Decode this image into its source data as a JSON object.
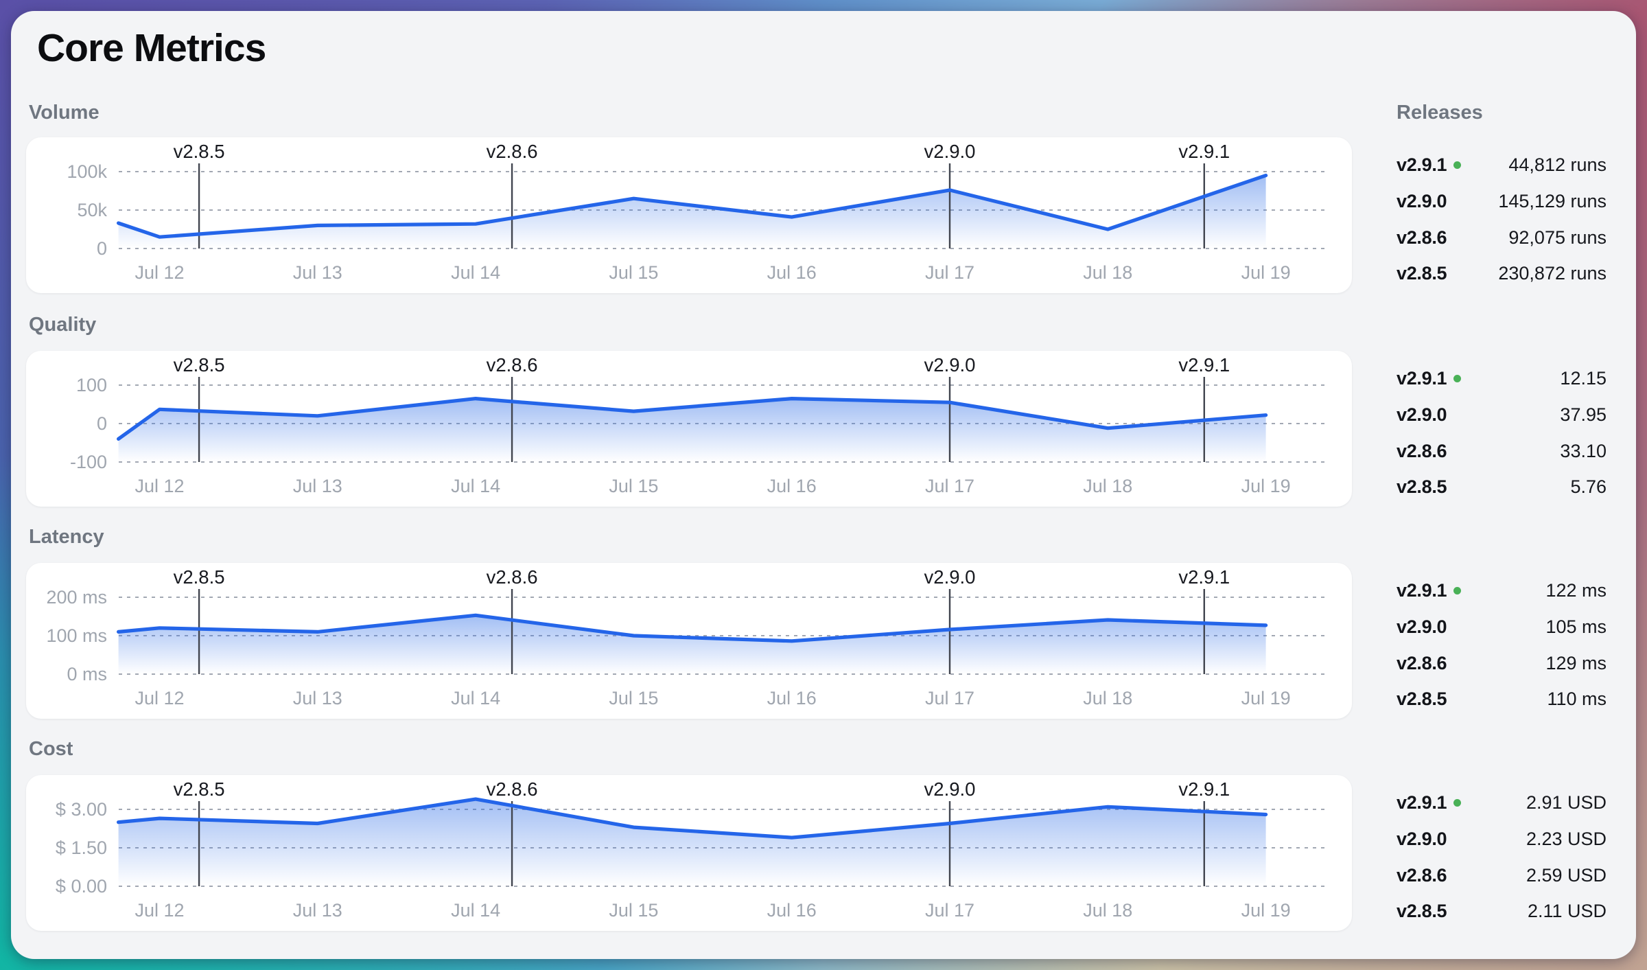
{
  "page": {
    "title": "Core Metrics"
  },
  "releases_panel": {
    "title": "Releases"
  },
  "x_axis": {
    "labels": [
      "Jul 12",
      "Jul 13",
      "Jul 14",
      "Jul 15",
      "Jul 16",
      "Jul 17",
      "Jul 18",
      "Jul 19"
    ],
    "days": [
      12,
      13,
      14,
      15,
      16,
      17,
      18,
      19
    ]
  },
  "release_markers": [
    {
      "label": "v2.8.5",
      "day": 12.25
    },
    {
      "label": "v2.8.6",
      "day": 14.23
    },
    {
      "label": "v2.9.0",
      "day": 17.0
    },
    {
      "label": "v2.9.1",
      "day": 18.61
    }
  ],
  "colors": {
    "accent_line": "#2465e9",
    "area_fill": "#2f6ee6",
    "current_release_dot": "#49b157",
    "panel_bg": "#f3f4f6",
    "card_bg": "#ffffff",
    "muted_text": "#6f7680",
    "axis_text": "#a0a6af"
  },
  "chart_data": [
    {
      "type": "area",
      "title": "Volume",
      "x_ticks": [
        "Jul 12",
        "Jul 13",
        "Jul 14",
        "Jul 15",
        "Jul 16",
        "Jul 17",
        "Jul 18",
        "Jul 19"
      ],
      "x": [
        11.74,
        12,
        13,
        14,
        15,
        16,
        17,
        18,
        19
      ],
      "values": [
        33000,
        15000,
        30000,
        32000,
        65000,
        41000,
        76000,
        25000,
        95000
      ],
      "y_gridlines": [
        100000,
        50000,
        0
      ],
      "y_tick_labels": [
        "100k",
        "50k",
        "0"
      ],
      "ylim": [
        0,
        112000
      ],
      "grid": true,
      "legend": false
    },
    {
      "type": "area",
      "title": "Quality",
      "x_ticks": [
        "Jul 12",
        "Jul 13",
        "Jul 14",
        "Jul 15",
        "Jul 16",
        "Jul 17",
        "Jul 18",
        "Jul 19"
      ],
      "x": [
        11.74,
        12,
        13,
        14,
        15,
        16,
        17,
        18,
        19
      ],
      "values": [
        -40,
        37,
        20,
        65,
        32,
        65,
        55,
        -12,
        22
      ],
      "y_gridlines": [
        100,
        0,
        -100
      ],
      "y_tick_labels": [
        "100",
        "0",
        "-100"
      ],
      "ylim": [
        -100,
        124
      ],
      "grid": true,
      "legend": false
    },
    {
      "type": "area",
      "title": "Latency",
      "x_ticks": [
        "Jul 12",
        "Jul 13",
        "Jul 14",
        "Jul 15",
        "Jul 16",
        "Jul 17",
        "Jul 18",
        "Jul 19"
      ],
      "x": [
        11.74,
        12,
        13,
        14,
        15,
        16,
        17,
        18,
        19
      ],
      "values": [
        110,
        120,
        110,
        153,
        100,
        86,
        116,
        141,
        127
      ],
      "y_gridlines": [
        200,
        100,
        0
      ],
      "y_tick_labels": [
        "200 ms",
        "100 ms",
        "0 ms"
      ],
      "ylim": [
        0,
        224
      ],
      "grid": true,
      "legend": false
    },
    {
      "type": "area",
      "title": "Cost",
      "x_ticks": [
        "Jul 12",
        "Jul 13",
        "Jul 14",
        "Jul 15",
        "Jul 16",
        "Jul 17",
        "Jul 18",
        "Jul 19"
      ],
      "x": [
        11.74,
        12,
        13,
        14,
        15,
        16,
        17,
        18,
        19
      ],
      "values": [
        2.5,
        2.65,
        2.45,
        3.4,
        2.3,
        1.9,
        2.45,
        3.1,
        2.8
      ],
      "y_gridlines": [
        3.0,
        1.5,
        0.0
      ],
      "y_tick_labels": [
        "$ 3.00",
        "$ 1.50",
        "$ 0.00"
      ],
      "ylim": [
        0,
        3.36
      ],
      "grid": true,
      "legend": false
    }
  ],
  "sections": [
    {
      "label": "Volume",
      "releases": [
        {
          "version": "v2.9.1",
          "current": true,
          "value": "44,812 runs"
        },
        {
          "version": "v2.9.0",
          "current": false,
          "value": "145,129 runs"
        },
        {
          "version": "v2.8.6",
          "current": false,
          "value": "92,075 runs"
        },
        {
          "version": "v2.8.5",
          "current": false,
          "value": "230,872 runs"
        }
      ]
    },
    {
      "label": "Quality",
      "releases": [
        {
          "version": "v2.9.1",
          "current": true,
          "value": "12.15"
        },
        {
          "version": "v2.9.0",
          "current": false,
          "value": "37.95"
        },
        {
          "version": "v2.8.6",
          "current": false,
          "value": "33.10"
        },
        {
          "version": "v2.8.5",
          "current": false,
          "value": "5.76"
        }
      ]
    },
    {
      "label": "Latency",
      "releases": [
        {
          "version": "v2.9.1",
          "current": true,
          "value": "122 ms"
        },
        {
          "version": "v2.9.0",
          "current": false,
          "value": "105 ms"
        },
        {
          "version": "v2.8.6",
          "current": false,
          "value": "129 ms"
        },
        {
          "version": "v2.8.5",
          "current": false,
          "value": "110 ms"
        }
      ]
    },
    {
      "label": "Cost",
      "releases": [
        {
          "version": "v2.9.1",
          "current": true,
          "value": "2.91 USD"
        },
        {
          "version": "v2.9.0",
          "current": false,
          "value": "2.23 USD"
        },
        {
          "version": "v2.8.6",
          "current": false,
          "value": "2.59 USD"
        },
        {
          "version": "v2.8.5",
          "current": false,
          "value": "2.11 USD"
        }
      ]
    }
  ]
}
